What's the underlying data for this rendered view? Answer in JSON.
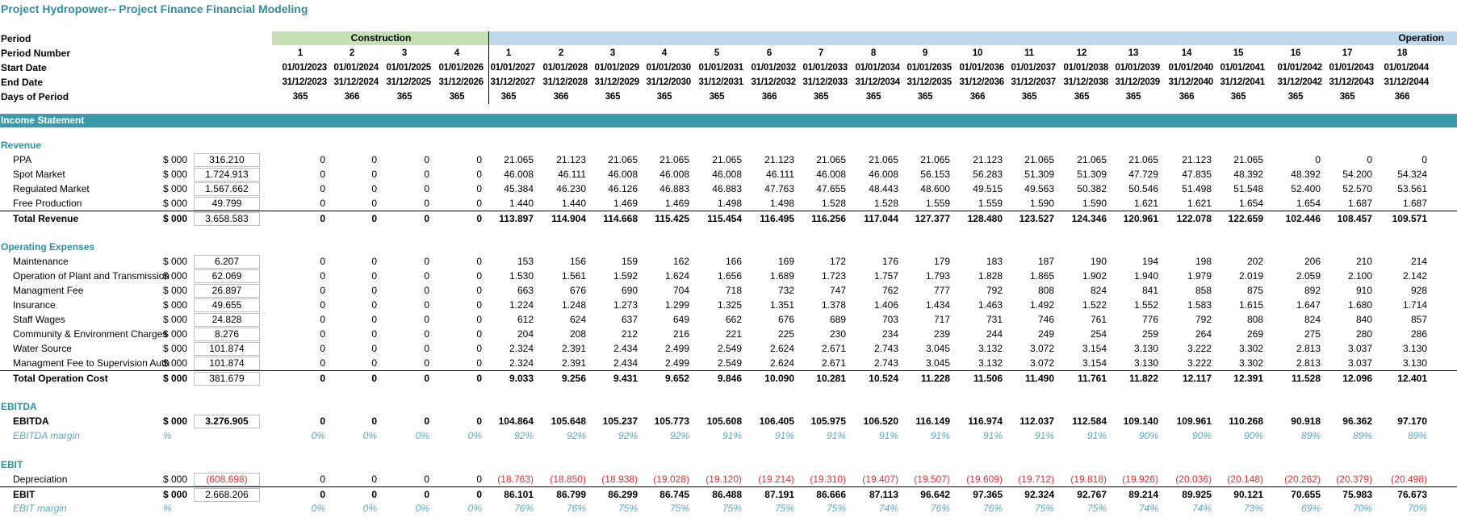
{
  "title": "Project Hydropower-- Project Finance Financial Modeling",
  "bands": {
    "construction": "Construction",
    "operation": "Operation"
  },
  "header": {
    "period_label": "Period",
    "period_number_label": "Period Number",
    "start_date_label": "Start Date",
    "end_date_label": "End Date",
    "days_label": "Days of Period",
    "period_numbers": [
      "1",
      "2",
      "3",
      "4",
      "1",
      "2",
      "3",
      "4",
      "5",
      "6",
      "7",
      "8",
      "9",
      "10",
      "11",
      "12",
      "13",
      "14",
      "15",
      "16",
      "17",
      "18"
    ],
    "start_dates": [
      "01/01/2023",
      "01/01/2024",
      "01/01/2025",
      "01/01/2026",
      "01/01/2027",
      "01/01/2028",
      "01/01/2029",
      "01/01/2030",
      "01/01/2031",
      "01/01/2032",
      "01/01/2033",
      "01/01/2034",
      "01/01/2035",
      "01/01/2036",
      "01/01/2037",
      "01/01/2038",
      "01/01/2039",
      "01/01/2040",
      "01/01/2041",
      "01/01/2042",
      "01/01/2043",
      "01/01/2044"
    ],
    "end_dates": [
      "31/12/2023",
      "31/12/2024",
      "31/12/2025",
      "31/12/2026",
      "31/12/2027",
      "31/12/2028",
      "31/12/2029",
      "31/12/2030",
      "31/12/2031",
      "31/12/2032",
      "31/12/2033",
      "31/12/2034",
      "31/12/2035",
      "31/12/2036",
      "31/12/2037",
      "31/12/2038",
      "31/12/2039",
      "31/12/2040",
      "31/12/2041",
      "31/12/2042",
      "31/12/2043",
      "31/12/2044"
    ],
    "days": [
      "365",
      "366",
      "365",
      "365",
      "365",
      "366",
      "365",
      "365",
      "365",
      "366",
      "365",
      "365",
      "365",
      "366",
      "365",
      "365",
      "365",
      "366",
      "365",
      "365",
      "365",
      "366"
    ]
  },
  "income_statement": {
    "bar_label": "Income Statement",
    "revenue_header": "Revenue",
    "opex_header": "Operating Expenses",
    "ebitda_header": "EBITDA",
    "ebit_header": "EBIT",
    "rows": {
      "ppa": {
        "label": "PPA",
        "unit": "$ 000",
        "total": "316.210",
        "values": [
          "0",
          "0",
          "0",
          "0",
          "21.065",
          "21.123",
          "21.065",
          "21.065",
          "21.065",
          "21.123",
          "21.065",
          "21.065",
          "21.065",
          "21.123",
          "21.065",
          "21.065",
          "21.065",
          "21.123",
          "21.065",
          "0",
          "0",
          "0"
        ]
      },
      "spot": {
        "label": "Spot Market",
        "unit": "$ 000",
        "total": "1.724.913",
        "values": [
          "0",
          "0",
          "0",
          "0",
          "46.008",
          "46.111",
          "46.008",
          "46.008",
          "46.008",
          "46.111",
          "46.008",
          "46.008",
          "56.153",
          "56.283",
          "51.309",
          "51.309",
          "47.729",
          "47.835",
          "48.392",
          "48.392",
          "54.200",
          "54.324"
        ]
      },
      "regulated": {
        "label": "Regulated Market",
        "unit": "$ 000",
        "total": "1.567.662",
        "values": [
          "0",
          "0",
          "0",
          "0",
          "45.384",
          "46.230",
          "46.126",
          "46.883",
          "46.883",
          "47.763",
          "47.655",
          "48.443",
          "48.600",
          "49.515",
          "49.563",
          "50.382",
          "50.546",
          "51.498",
          "51.548",
          "52.400",
          "52.570",
          "53.561"
        ]
      },
      "free": {
        "label": "Free Production",
        "unit": "$ 000",
        "total": "49.799",
        "values": [
          "0",
          "0",
          "0",
          "0",
          "1.440",
          "1.440",
          "1.469",
          "1.469",
          "1.498",
          "1.498",
          "1.528",
          "1.528",
          "1.559",
          "1.559",
          "1.590",
          "1.590",
          "1.621",
          "1.621",
          "1.654",
          "1.654",
          "1.687",
          "1.687"
        ]
      },
      "total_revenue": {
        "label": "Total Revenue",
        "unit": "$ 000",
        "total": "3.658.583",
        "values": [
          "0",
          "0",
          "0",
          "0",
          "113.897",
          "114.904",
          "114.668",
          "115.425",
          "115.454",
          "116.495",
          "116.256",
          "117.044",
          "127.377",
          "128.480",
          "123.527",
          "124.346",
          "120.961",
          "122.078",
          "122.659",
          "102.446",
          "108.457",
          "109.571"
        ]
      },
      "maintenance": {
        "label": "Maintenance",
        "unit": "$ 000",
        "total": "6.207",
        "values": [
          "0",
          "0",
          "0",
          "0",
          "153",
          "156",
          "159",
          "162",
          "166",
          "169",
          "172",
          "176",
          "179",
          "183",
          "187",
          "190",
          "194",
          "198",
          "202",
          "206",
          "210",
          "214"
        ]
      },
      "operation": {
        "label": "Operation of Plant and Transmission",
        "unit": "$ 000",
        "total": "62.069",
        "values": [
          "0",
          "0",
          "0",
          "0",
          "1.530",
          "1.561",
          "1.592",
          "1.624",
          "1.656",
          "1.689",
          "1.723",
          "1.757",
          "1.793",
          "1.828",
          "1.865",
          "1.902",
          "1.940",
          "1.979",
          "2.019",
          "2.059",
          "2.100",
          "2.142"
        ]
      },
      "mgmt_fee": {
        "label": "Managment Fee",
        "unit": "$ 000",
        "total": "26.897",
        "values": [
          "0",
          "0",
          "0",
          "0",
          "663",
          "676",
          "690",
          "704",
          "718",
          "732",
          "747",
          "762",
          "777",
          "792",
          "808",
          "824",
          "841",
          "858",
          "875",
          "892",
          "910",
          "928"
        ]
      },
      "insurance": {
        "label": "Insurance",
        "unit": "$ 000",
        "total": "49.655",
        "values": [
          "0",
          "0",
          "0",
          "0",
          "1.224",
          "1.248",
          "1.273",
          "1.299",
          "1.325",
          "1.351",
          "1.378",
          "1.406",
          "1.434",
          "1.463",
          "1.492",
          "1.522",
          "1.552",
          "1.583",
          "1.615",
          "1.647",
          "1.680",
          "1.714"
        ]
      },
      "staff": {
        "label": "Staff Wages",
        "unit": "$ 000",
        "total": "24.828",
        "values": [
          "0",
          "0",
          "0",
          "0",
          "612",
          "624",
          "637",
          "649",
          "662",
          "676",
          "689",
          "703",
          "717",
          "731",
          "746",
          "761",
          "776",
          "792",
          "808",
          "824",
          "840",
          "857"
        ]
      },
      "community": {
        "label": "Community & Environment Charges",
        "unit": "$ 000",
        "total": "8.276",
        "values": [
          "0",
          "0",
          "0",
          "0",
          "204",
          "208",
          "212",
          "216",
          "221",
          "225",
          "230",
          "234",
          "239",
          "244",
          "249",
          "254",
          "259",
          "264",
          "269",
          "275",
          "280",
          "286"
        ]
      },
      "water": {
        "label": "Water Source",
        "unit": "$ 000",
        "total": "101.874",
        "values": [
          "0",
          "0",
          "0",
          "0",
          "2.324",
          "2.391",
          "2.434",
          "2.499",
          "2.549",
          "2.624",
          "2.671",
          "2.743",
          "3.045",
          "3.132",
          "3.072",
          "3.154",
          "3.130",
          "3.222",
          "3.302",
          "2.813",
          "3.037",
          "3.130"
        ]
      },
      "mgmt_sup": {
        "label": "Managment Fee to Supervision Auth",
        "unit": "$ 000",
        "total": "101.874",
        "values": [
          "0",
          "0",
          "0",
          "0",
          "2.324",
          "2.391",
          "2.434",
          "2.499",
          "2.549",
          "2.624",
          "2.671",
          "2.743",
          "3.045",
          "3.132",
          "3.072",
          "3.154",
          "3.130",
          "3.222",
          "3.302",
          "2.813",
          "3.037",
          "3.130"
        ]
      },
      "total_opex": {
        "label": "Total Operation Cost",
        "unit": "$ 000",
        "total": "381.679",
        "values": [
          "0",
          "0",
          "0",
          "0",
          "9.033",
          "9.256",
          "9.431",
          "9.652",
          "9.846",
          "10.090",
          "10.281",
          "10.524",
          "11.228",
          "11.506",
          "11.490",
          "11.761",
          "11.822",
          "12.117",
          "12.391",
          "11.528",
          "12.096",
          "12.401"
        ]
      },
      "ebitda": {
        "label": "EBITDA",
        "unit": "$ 000",
        "total": "3.276.905",
        "values": [
          "0",
          "0",
          "0",
          "0",
          "104.864",
          "105.648",
          "105.237",
          "105.773",
          "105.608",
          "106.405",
          "105.975",
          "106.520",
          "116.149",
          "116.974",
          "112.037",
          "112.584",
          "109.140",
          "109.961",
          "110.268",
          "90.918",
          "96.362",
          "97.170"
        ]
      },
      "ebitda_margin": {
        "label": "EBITDA margin",
        "unit": "%",
        "values": [
          "0%",
          "0%",
          "0%",
          "0%",
          "92%",
          "92%",
          "92%",
          "92%",
          "91%",
          "91%",
          "91%",
          "91%",
          "91%",
          "91%",
          "91%",
          "91%",
          "90%",
          "90%",
          "90%",
          "89%",
          "89%",
          "89%"
        ]
      },
      "depreciation": {
        "label": "Depreciation",
        "unit": "$ 000",
        "total": "(608.698)",
        "values": [
          "0",
          "0",
          "0",
          "0",
          "(18.763)",
          "(18.850)",
          "(18.938)",
          "(19.028)",
          "(19.120)",
          "(19.214)",
          "(19.310)",
          "(19.407)",
          "(19.507)",
          "(19.609)",
          "(19.712)",
          "(19.818)",
          "(19.926)",
          "(20.036)",
          "(20.148)",
          "(20.262)",
          "(20.379)",
          "(20.498)"
        ]
      },
      "ebit": {
        "label": "EBIT",
        "unit": "$ 000",
        "total": "2.668.206",
        "values": [
          "0",
          "0",
          "0",
          "0",
          "86.101",
          "86.799",
          "86.299",
          "86.745",
          "86.488",
          "87.191",
          "86.666",
          "87.113",
          "96.642",
          "97.365",
          "92.324",
          "92.767",
          "89.214",
          "89.925",
          "90.121",
          "70.655",
          "75.983",
          "76.673"
        ]
      },
      "ebit_margin": {
        "label": "EBIT margin",
        "unit": "%",
        "values": [
          "0%",
          "0%",
          "0%",
          "0%",
          "76%",
          "76%",
          "75%",
          "75%",
          "75%",
          "75%",
          "75%",
          "74%",
          "76%",
          "76%",
          "75%",
          "75%",
          "74%",
          "74%",
          "73%",
          "69%",
          "70%",
          "70%"
        ]
      }
    }
  }
}
